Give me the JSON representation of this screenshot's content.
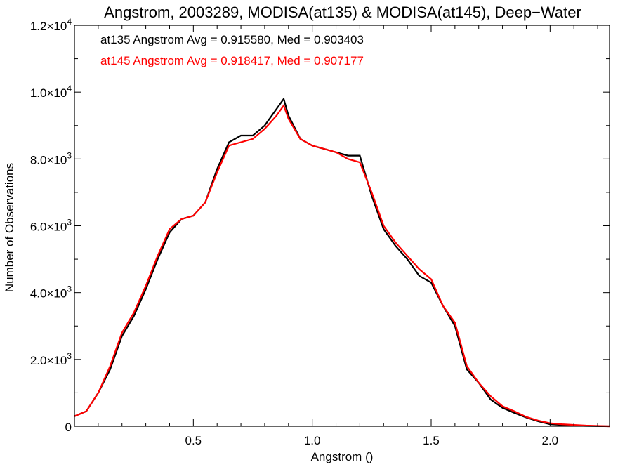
{
  "chart_data": {
    "type": "line",
    "title": "Angstrom, 2003289, MODISA(at135) & MODISA(at145), Deep−Water",
    "xlabel": "Angstrom ()",
    "ylabel": "Number of Observations",
    "xlim": [
      0.0,
      2.25
    ],
    "ylim": [
      0,
      12000
    ],
    "xticks": [
      {
        "value": 0.5,
        "label": "0.5"
      },
      {
        "value": 1.0,
        "label": "1.0"
      },
      {
        "value": 1.5,
        "label": "1.5"
      },
      {
        "value": 2.0,
        "label": "2.0"
      }
    ],
    "yticks": [
      {
        "value": 0,
        "mant": "0",
        "exp": ""
      },
      {
        "value": 2000,
        "mant": "2.0×10",
        "exp": "3"
      },
      {
        "value": 4000,
        "mant": "4.0×10",
        "exp": "3"
      },
      {
        "value": 6000,
        "mant": "6.0×10",
        "exp": "3"
      },
      {
        "value": 8000,
        "mant": "8.0×10",
        "exp": "3"
      },
      {
        "value": 10000,
        "mant": "1.0×10",
        "exp": "4"
      },
      {
        "value": 12000,
        "mant": "1.2×10",
        "exp": "4"
      }
    ],
    "grid": false,
    "annotations": [
      {
        "text": "at135 Angstrom Avg = 0.915580, Med = 0.903403",
        "color": "#000000"
      },
      {
        "text": "at145 Angstrom Avg = 0.918417, Med = 0.907177",
        "color": "#ff0000"
      }
    ],
    "series": [
      {
        "color": "#000000",
        "x": [
          0.0,
          0.05,
          0.1,
          0.15,
          0.2,
          0.25,
          0.3,
          0.35,
          0.4,
          0.45,
          0.5,
          0.55,
          0.6,
          0.65,
          0.7,
          0.75,
          0.8,
          0.85,
          0.88,
          0.9,
          0.95,
          1.0,
          1.05,
          1.1,
          1.15,
          1.2,
          1.25,
          1.3,
          1.35,
          1.4,
          1.45,
          1.5,
          1.55,
          1.6,
          1.65,
          1.7,
          1.75,
          1.8,
          1.85,
          1.9,
          1.95,
          2.0,
          2.05,
          2.1,
          2.15,
          2.2,
          2.25
        ],
        "y": [
          300,
          450,
          1000,
          1700,
          2700,
          3300,
          4100,
          5000,
          5800,
          6200,
          6300,
          6700,
          7700,
          8500,
          8700,
          8700,
          9000,
          9500,
          9800,
          9300,
          8600,
          8400,
          8300,
          8200,
          8100,
          8100,
          6900,
          5900,
          5400,
          5000,
          4500,
          4300,
          3600,
          3000,
          1700,
          1300,
          800,
          550,
          400,
          260,
          150,
          60,
          40,
          20,
          10,
          5,
          0
        ]
      },
      {
        "color": "#ff0000",
        "x": [
          0.0,
          0.05,
          0.1,
          0.15,
          0.2,
          0.25,
          0.3,
          0.35,
          0.4,
          0.45,
          0.5,
          0.55,
          0.6,
          0.65,
          0.7,
          0.75,
          0.8,
          0.85,
          0.88,
          0.9,
          0.95,
          1.0,
          1.05,
          1.1,
          1.15,
          1.2,
          1.25,
          1.3,
          1.35,
          1.4,
          1.45,
          1.5,
          1.55,
          1.6,
          1.65,
          1.7,
          1.75,
          1.8,
          1.85,
          1.9,
          1.95,
          2.0,
          2.05,
          2.1,
          2.15,
          2.2,
          2.25
        ],
        "y": [
          300,
          450,
          1000,
          1800,
          2800,
          3400,
          4200,
          5100,
          5900,
          6200,
          6300,
          6700,
          7600,
          8400,
          8500,
          8600,
          8900,
          9300,
          9600,
          9200,
          8600,
          8400,
          8300,
          8200,
          8000,
          7900,
          7000,
          6000,
          5500,
          5100,
          4700,
          4400,
          3600,
          3100,
          1800,
          1300,
          900,
          600,
          450,
          280,
          170,
          90,
          60,
          40,
          20,
          10,
          0
        ]
      }
    ]
  }
}
